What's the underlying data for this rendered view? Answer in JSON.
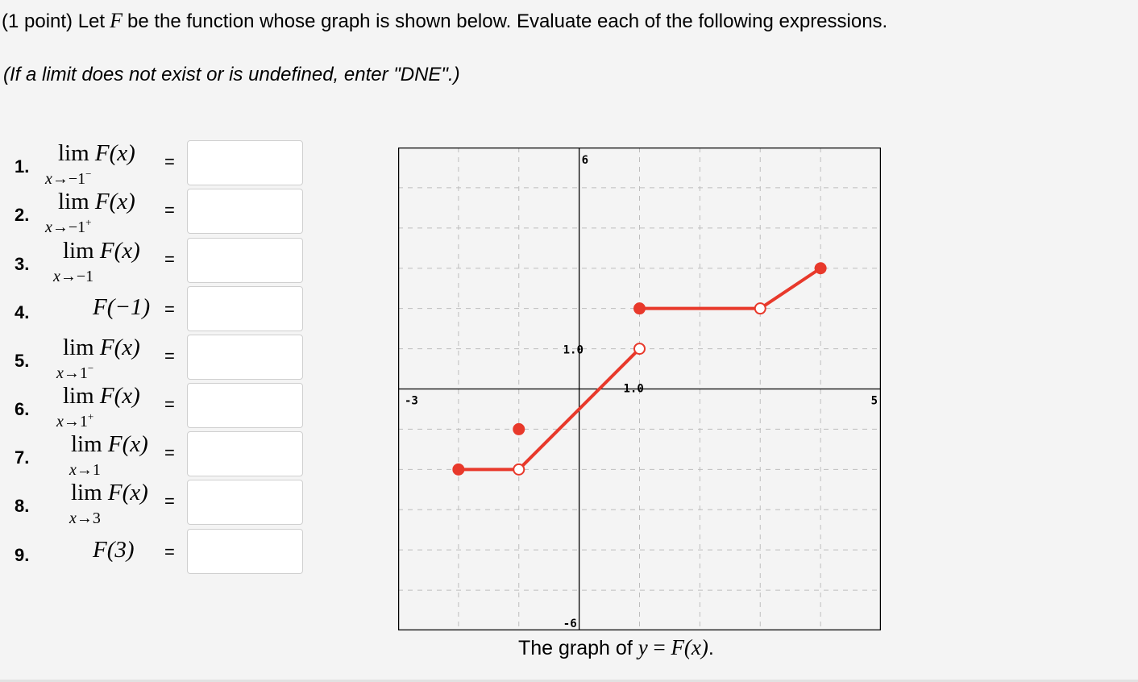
{
  "header": {
    "prefix": "(1 point) Let",
    "function_var": "F",
    "suffix": "be the function whose graph is shown below. Evaluate each of the following expressions."
  },
  "instructions": "(If a limit does not exist or is undefined, enter \"DNE\".)",
  "problems": [
    {
      "number": "1.",
      "expr": "lim",
      "func": "F(x)",
      "sub_var": "x",
      "sub_arrow": "→−1",
      "sub_sup": "−",
      "eq": "=",
      "answer_value": ""
    },
    {
      "number": "2.",
      "expr": "lim",
      "func": "F(x)",
      "sub_var": "x",
      "sub_arrow": "→−1",
      "sub_sup": "+",
      "eq": "=",
      "answer_value": ""
    },
    {
      "number": "3.",
      "expr": "lim",
      "func": "F(x)",
      "sub_var": "x",
      "sub_arrow": "→−1",
      "sub_sup": "",
      "eq": "=",
      "answer_value": ""
    },
    {
      "number": "4.",
      "expr": "",
      "func": "F(−1)",
      "sub_var": "",
      "sub_arrow": "",
      "sub_sup": "",
      "eq": "=",
      "answer_value": ""
    },
    {
      "number": "5.",
      "expr": "lim",
      "func": "F(x)",
      "sub_var": "x",
      "sub_arrow": "→1",
      "sub_sup": "−",
      "eq": "=",
      "answer_value": ""
    },
    {
      "number": "6.",
      "expr": "lim",
      "func": "F(x)",
      "sub_var": "x",
      "sub_arrow": "→1",
      "sub_sup": "+",
      "eq": "=",
      "answer_value": ""
    },
    {
      "number": "7.",
      "expr": "lim",
      "func": "F(x)",
      "sub_var": "x",
      "sub_arrow": "→1",
      "sub_sup": "",
      "eq": "=",
      "answer_value": ""
    },
    {
      "number": "8.",
      "expr": "lim",
      "func": "F(x)",
      "sub_var": "x",
      "sub_arrow": "→3",
      "sub_sup": "",
      "eq": "=",
      "answer_value": ""
    },
    {
      "number": "9.",
      "expr": "",
      "func": "F(3)",
      "sub_var": "",
      "sub_arrow": "",
      "sub_sup": "",
      "eq": "=",
      "answer_value": ""
    }
  ],
  "chart_data": {
    "type": "line",
    "xlim": [
      -3,
      5
    ],
    "ylim": [
      -6,
      6
    ],
    "grid": true,
    "axis_labels": {
      "xmin": "-3",
      "xmax": "5",
      "ymin": "-6",
      "ymax": "6",
      "xtick": "1.0",
      "ytick": "1.0"
    },
    "line_color": "#e8392b",
    "segments": [
      {
        "x1": -2,
        "y1": -2,
        "x2": -1,
        "y2": -2
      },
      {
        "x1": -1,
        "y1": -2,
        "x2": 1,
        "y2": 1
      },
      {
        "x1": 1,
        "y1": 2,
        "x2": 3,
        "y2": 2
      },
      {
        "x1": 3,
        "y1": 2,
        "x2": 4,
        "y2": 3
      }
    ],
    "points": [
      {
        "x": -2,
        "y": -2,
        "filled": true
      },
      {
        "x": -1,
        "y": -2,
        "filled": false
      },
      {
        "x": -1,
        "y": -1,
        "filled": true
      },
      {
        "x": 1,
        "y": 1,
        "filled": false
      },
      {
        "x": 1,
        "y": 2,
        "filled": true
      },
      {
        "x": 3,
        "y": 2,
        "filled": false
      },
      {
        "x": 4,
        "y": 3,
        "filled": true
      }
    ]
  },
  "caption": {
    "prefix": "The graph of",
    "y_var": "y",
    "eq": " = ",
    "func": "F(x)",
    "suffix": "."
  }
}
